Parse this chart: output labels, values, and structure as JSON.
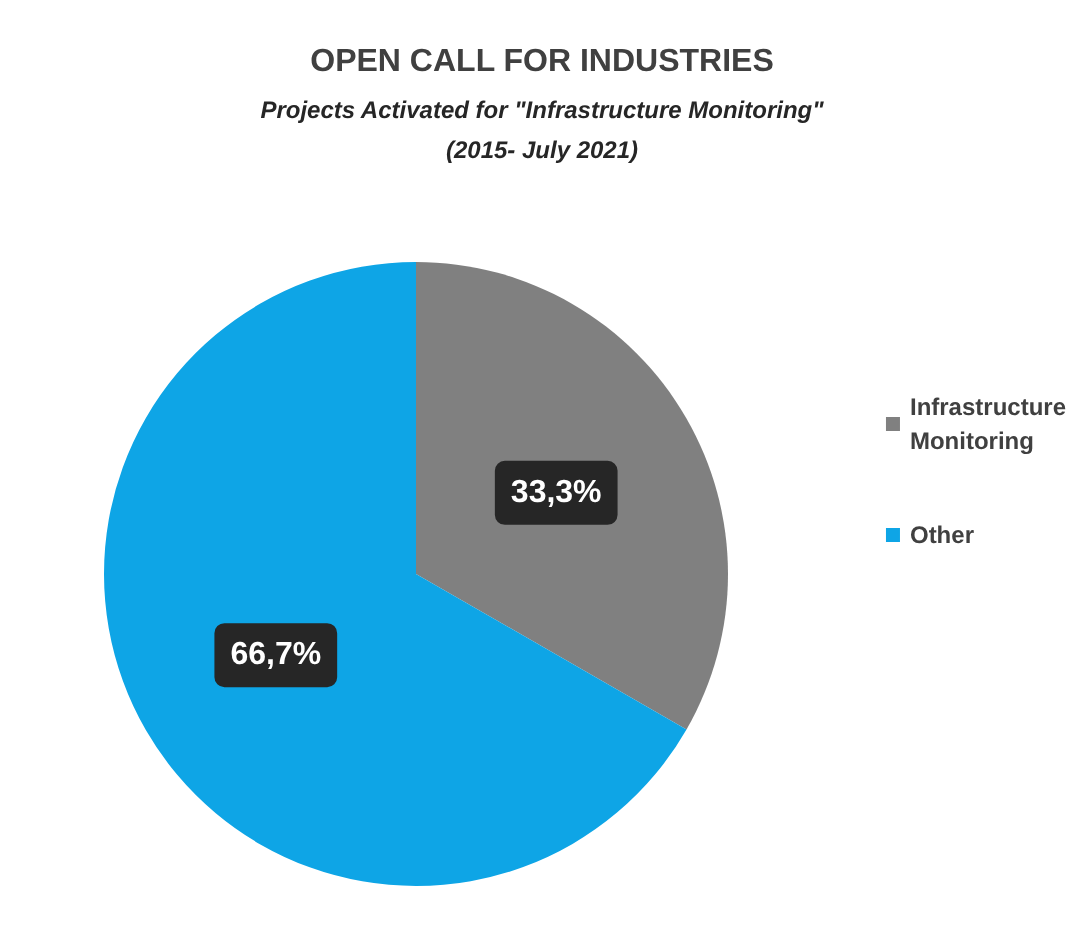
{
  "chart_data": {
    "type": "pie",
    "title": "OPEN CALL FOR INDUSTRIES",
    "subtitle": "Projects Activated for \"Infrastructure Monitoring\"\n(2015- July 2021)",
    "categories": [
      "Infrastructure Monitoring",
      "Other"
    ],
    "values": [
      33.3,
      66.7
    ],
    "colors": [
      "#808080",
      "#0ea5e6"
    ],
    "value_labels": [
      "33,3%",
      "66,7%"
    ],
    "legend": "right"
  }
}
